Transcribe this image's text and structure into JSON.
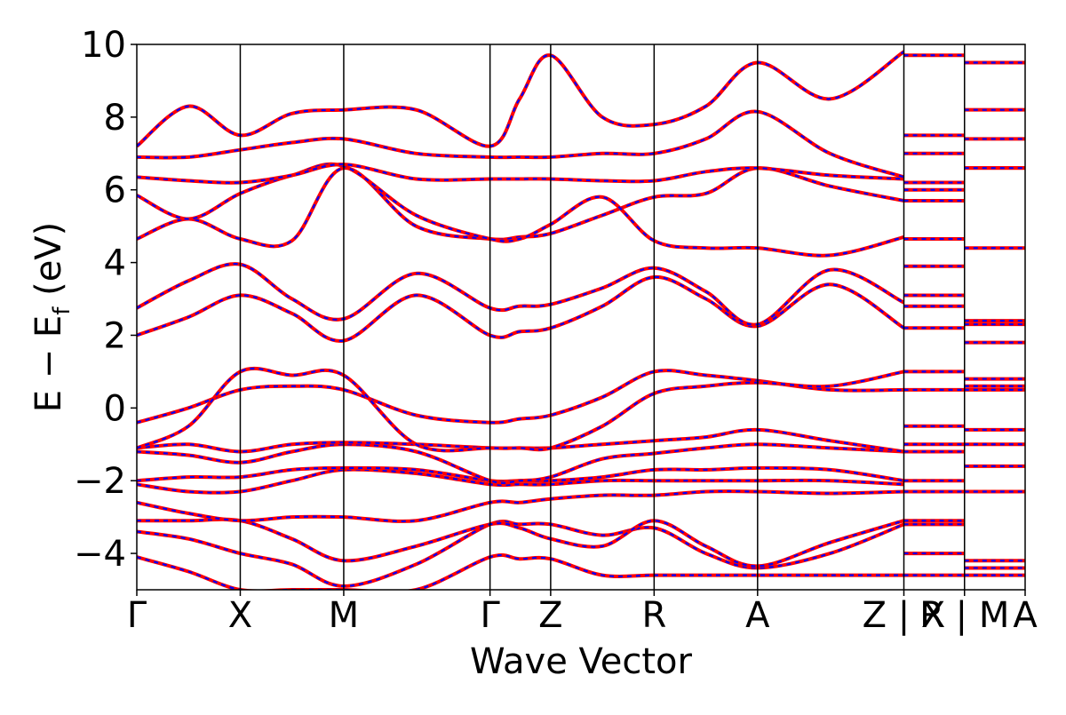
{
  "chart_data": {
    "type": "line",
    "xlabel": "Wave Vector",
    "ylabel_main": "E − E",
    "ylabel_sub": "f",
    "ylabel_unit": " (eV)",
    "ylim": [
      -5,
      10
    ],
    "yticks": [
      -4,
      -2,
      0,
      2,
      4,
      6,
      8,
      10
    ],
    "ytick_labels": [
      "−4",
      "−2",
      "0",
      "2",
      "4",
      "6",
      "8",
      "10"
    ],
    "xticks": [
      {
        "label": "Γ",
        "x": 0.0
      },
      {
        "label": "X",
        "x": 0.5
      },
      {
        "label": "M",
        "x": 1.0
      },
      {
        "label": "Γ",
        "x": 1.707
      },
      {
        "label": "Z",
        "x": 2.0
      },
      {
        "label": "R",
        "x": 2.5
      },
      {
        "label": "A",
        "x": 3.0
      },
      {
        "label": "Z | X",
        "x": 3.707
      },
      {
        "label": "R | M",
        "x": 4.0
      },
      {
        "label": "A",
        "x": 4.293
      }
    ],
    "xlim": [
      0,
      4.293
    ],
    "colors": {
      "series_1": "#ff0000",
      "series_2": "#0000ff"
    },
    "series": [
      {
        "color": "#ff0000",
        "style": "solid"
      },
      {
        "color": "#0000ff",
        "style": "dashed"
      }
    ],
    "bands": [
      {
        "x": [
          0,
          0.25,
          0.5,
          0.75,
          1.0,
          1.35,
          1.707,
          1.85,
          2.0,
          2.25,
          2.5,
          2.75,
          3.0,
          3.35,
          3.707
        ],
        "y": [
          -4.1,
          -4.5,
          -5.0,
          -5.0,
          -5.0,
          -5.0,
          -4.1,
          -4.15,
          -4.15,
          -4.6,
          -4.6,
          -4.6,
          -4.6,
          -4.6,
          -4.6
        ]
      },
      {
        "x": [
          0,
          0.25,
          0.5,
          0.75,
          1.0,
          1.35,
          1.707,
          1.85,
          2.0,
          2.25,
          2.5,
          2.75,
          3.0,
          3.35,
          3.707
        ],
        "y": [
          -3.4,
          -3.6,
          -4.0,
          -4.3,
          -4.9,
          -4.3,
          -3.2,
          -3.2,
          -3.2,
          -3.5,
          -3.3,
          -4.0,
          -4.4,
          -4.0,
          -3.2
        ]
      },
      {
        "x": [
          0,
          0.25,
          0.5,
          0.75,
          1.0,
          1.35,
          1.707,
          1.85,
          2.0,
          2.25,
          2.5,
          2.75,
          3.0,
          3.35,
          3.707
        ],
        "y": [
          -3.1,
          -3.1,
          -3.1,
          -3.6,
          -4.2,
          -3.8,
          -3.2,
          -3.3,
          -3.6,
          -3.8,
          -3.1,
          -3.8,
          -4.35,
          -3.7,
          -3.1
        ]
      },
      {
        "x": [
          0,
          0.25,
          0.5,
          0.75,
          1.0,
          1.35,
          1.707,
          1.85,
          2.0,
          2.25,
          2.5,
          2.75,
          3.0,
          3.35,
          3.707
        ],
        "y": [
          -2.6,
          -2.9,
          -3.1,
          -3.0,
          -3.0,
          -3.1,
          -2.6,
          -2.6,
          -2.5,
          -2.4,
          -2.4,
          -2.3,
          -2.3,
          -2.35,
          -2.3
        ]
      },
      {
        "x": [
          0,
          0.25,
          0.5,
          0.75,
          1.0,
          1.35,
          1.707,
          1.85,
          2.0,
          2.25,
          2.5,
          2.75,
          3.0,
          3.35,
          3.707
        ],
        "y": [
          -2.1,
          -2.3,
          -2.3,
          -2.0,
          -1.7,
          -1.8,
          -2.1,
          -2.1,
          -2.1,
          -2.0,
          -2.0,
          -2.0,
          -2.0,
          -2.0,
          -2.1
        ]
      },
      {
        "x": [
          0,
          0.25,
          0.5,
          0.75,
          1.0,
          1.35,
          1.707,
          1.85,
          2.0,
          2.25,
          2.5,
          2.75,
          3.0,
          3.35,
          3.707
        ],
        "y": [
          -2.0,
          -1.9,
          -1.9,
          -1.7,
          -1.65,
          -1.7,
          -2.0,
          -2.0,
          -2.0,
          -1.9,
          -1.7,
          -1.7,
          -1.65,
          -1.7,
          -2.0
        ]
      },
      {
        "x": [
          0,
          0.25,
          0.5,
          0.75,
          1.0,
          1.35,
          1.707,
          1.85,
          2.0,
          2.25,
          2.5,
          2.75,
          3.0,
          3.35,
          3.707
        ],
        "y": [
          -1.2,
          -1.3,
          -1.5,
          -1.2,
          -1.0,
          -1.2,
          -2.0,
          -2.0,
          -1.9,
          -1.4,
          -1.25,
          -1.1,
          -1.0,
          -1.1,
          -1.2
        ]
      },
      {
        "x": [
          0,
          0.25,
          0.5,
          0.75,
          1.0,
          1.35,
          1.707,
          1.85,
          2.0,
          2.25,
          2.5,
          2.75,
          3.0,
          3.35,
          3.707
        ],
        "y": [
          -1.1,
          -1.0,
          -1.2,
          -1.0,
          -0.95,
          -1.0,
          -1.1,
          -1.1,
          -1.1,
          -1.0,
          -0.9,
          -0.8,
          -0.6,
          -0.9,
          -1.2
        ]
      },
      {
        "x": [
          0,
          0.25,
          0.5,
          0.75,
          1.0,
          1.35,
          1.707,
          1.85,
          2.0,
          2.25,
          2.5,
          2.75,
          3.0,
          3.35,
          3.707
        ],
        "y": [
          -0.4,
          0.0,
          0.5,
          0.6,
          0.5,
          -0.2,
          -0.4,
          -0.3,
          -0.2,
          0.3,
          1.0,
          0.9,
          0.75,
          0.5,
          0.5
        ]
      },
      {
        "x": [
          0,
          0.25,
          0.5,
          0.75,
          1.0,
          1.35,
          1.707,
          1.85,
          2.0,
          2.25,
          2.5,
          2.75,
          3.0,
          3.35,
          3.707
        ],
        "y": [
          -1.1,
          -0.5,
          1.0,
          0.9,
          0.9,
          -1.0,
          -1.1,
          -1.1,
          -1.1,
          -0.5,
          0.4,
          0.6,
          0.7,
          0.6,
          1.0
        ]
      },
      {
        "x": [
          0,
          0.25,
          0.5,
          0.75,
          1.0,
          1.35,
          1.707,
          1.85,
          2.0,
          2.25,
          2.5,
          2.75,
          3.0,
          3.35,
          3.707
        ],
        "y": [
          2.0,
          2.5,
          3.1,
          2.6,
          1.85,
          3.1,
          2.0,
          2.1,
          2.2,
          2.8,
          3.6,
          3.0,
          2.25,
          3.4,
          2.2
        ]
      },
      {
        "x": [
          0,
          0.25,
          0.5,
          0.75,
          1.0,
          1.35,
          1.707,
          1.85,
          2.0,
          2.25,
          2.5,
          2.75,
          3.0,
          3.35,
          3.707
        ],
        "y": [
          2.75,
          3.5,
          3.95,
          3.0,
          2.45,
          3.7,
          2.75,
          2.8,
          2.85,
          3.3,
          3.85,
          3.2,
          2.3,
          3.8,
          2.9
        ]
      },
      {
        "x": [
          0,
          0.25,
          0.5,
          0.75,
          1.0,
          1.35,
          1.707,
          1.85,
          2.0,
          2.25,
          2.5,
          2.75,
          3.0,
          3.35,
          3.707
        ],
        "y": [
          4.65,
          5.2,
          4.65,
          4.6,
          6.6,
          5.0,
          4.65,
          4.7,
          4.8,
          5.3,
          5.8,
          5.9,
          6.6,
          6.1,
          5.7
        ]
      },
      {
        "x": [
          0,
          0.25,
          0.5,
          0.75,
          1.0,
          1.35,
          1.707,
          1.85,
          2.0,
          2.25,
          2.5,
          2.75,
          3.0,
          3.35,
          3.707
        ],
        "y": [
          5.85,
          5.2,
          5.9,
          6.4,
          6.65,
          5.3,
          4.65,
          4.65,
          5.05,
          5.8,
          4.6,
          4.4,
          4.4,
          4.2,
          4.7
        ]
      },
      {
        "x": [
          0,
          0.25,
          0.5,
          0.75,
          1.0,
          1.35,
          1.707,
          1.85,
          2.0,
          2.25,
          2.5,
          2.75,
          3.0,
          3.35,
          3.707
        ],
        "y": [
          6.35,
          6.25,
          6.2,
          6.4,
          6.7,
          6.3,
          6.3,
          6.3,
          6.3,
          6.25,
          6.25,
          6.5,
          6.6,
          6.4,
          6.3
        ]
      },
      {
        "x": [
          0,
          0.25,
          0.5,
          0.75,
          1.0,
          1.35,
          1.707,
          1.85,
          2.0,
          2.25,
          2.5,
          2.75,
          3.0,
          3.35,
          3.707
        ],
        "y": [
          6.9,
          6.9,
          7.1,
          7.3,
          7.4,
          7.0,
          6.9,
          6.9,
          6.9,
          7.0,
          7.0,
          7.4,
          8.15,
          7.0,
          6.35
        ]
      },
      {
        "x": [
          0,
          0.25,
          0.5,
          0.75,
          1.0,
          1.35,
          1.707,
          1.85,
          2.0,
          2.25,
          2.5,
          2.75,
          3.0,
          3.35,
          3.707
        ],
        "y": [
          7.2,
          8.3,
          7.5,
          8.1,
          8.2,
          8.2,
          7.2,
          8.5,
          9.7,
          8.0,
          7.8,
          8.3,
          9.5,
          8.5,
          9.8
        ]
      }
    ],
    "side_levels_a": [
      -4.6,
      -4.0,
      -3.2,
      -3.1,
      -2.3,
      -2.0,
      -1.2,
      -1.0,
      -0.5,
      0.5,
      1.0,
      2.2,
      2.8,
      3.1,
      3.9,
      4.65,
      5.7,
      6.0,
      6.2,
      7.0,
      7.5,
      9.7
    ],
    "side_levels_b": [
      -4.6,
      -4.4,
      -4.2,
      -2.3,
      -1.6,
      -1.0,
      -0.6,
      0.5,
      0.6,
      0.8,
      1.8,
      2.3,
      2.4,
      4.4,
      6.6,
      6.6,
      7.4,
      8.2,
      9.5
    ]
  }
}
